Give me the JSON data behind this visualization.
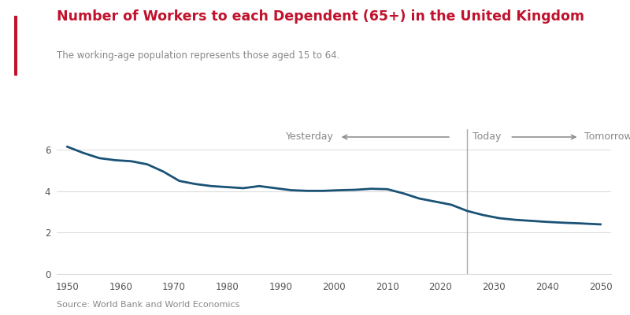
{
  "title": "Number of Workers to each Dependent (65+) in the United Kingdom",
  "subtitle": "The working-age population represents those aged 15 to 64.",
  "source": "Source: World Bank and World Economics",
  "title_color": "#C0122C",
  "subtitle_color": "#888888",
  "source_color": "#888888",
  "line_color": "#1a5276",
  "vline_x": 2025,
  "vline_color": "#aaaaaa",
  "annotation_color": "#888888",
  "annotation_fontsize": 9,
  "left_bar_color": "#C0122C",
  "background_color": "#ffffff",
  "xlim": [
    1948,
    2052
  ],
  "ylim": [
    0,
    7
  ],
  "yticks": [
    0,
    2,
    4,
    6
  ],
  "xticks": [
    1950,
    1960,
    1970,
    1980,
    1990,
    2000,
    2010,
    2020,
    2030,
    2040,
    2050
  ],
  "years": [
    1950,
    1953,
    1956,
    1959,
    1962,
    1965,
    1968,
    1971,
    1974,
    1977,
    1980,
    1983,
    1986,
    1989,
    1992,
    1995,
    1998,
    2001,
    2004,
    2007,
    2010,
    2013,
    2016,
    2019,
    2022,
    2025,
    2028,
    2031,
    2034,
    2037,
    2040,
    2043,
    2046,
    2050
  ],
  "values": [
    6.15,
    5.85,
    5.6,
    5.5,
    5.45,
    5.3,
    4.95,
    4.5,
    4.35,
    4.25,
    4.2,
    4.15,
    4.25,
    4.15,
    4.05,
    4.02,
    4.02,
    4.05,
    4.07,
    4.12,
    4.1,
    3.9,
    3.65,
    3.5,
    3.35,
    3.05,
    2.85,
    2.7,
    2.62,
    2.57,
    2.52,
    2.48,
    2.45,
    2.4
  ],
  "grid_color": "#dddddd",
  "line_width": 2.0
}
